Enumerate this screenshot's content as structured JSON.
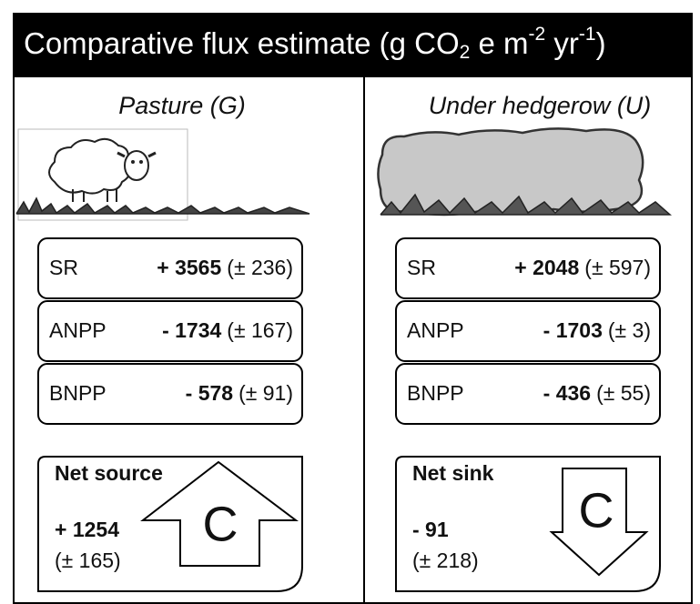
{
  "title": [
    "Comparative flux estimate (g CO",
    "2",
    " e m",
    "-2",
    " yr",
    "-1",
    ")"
  ],
  "panels": [
    {
      "heading": "Pasture (G)",
      "fluxes": [
        {
          "label": "SR",
          "value": "+ 3565",
          "error": "(± 236)"
        },
        {
          "label": "ANPP",
          "value": "- 1734",
          "error": "(± 167)"
        },
        {
          "label": "BNPP",
          "value": "- 578",
          "error": "(± 91)"
        }
      ],
      "net": {
        "label": "Net source",
        "value": "+ 1254",
        "error": "(± 165)",
        "symbol": "C"
      }
    },
    {
      "heading": "Under hedgerow (U)",
      "fluxes": [
        {
          "label": "SR",
          "value": "+ 2048",
          "error": "(± 597)"
        },
        {
          "label": "ANPP",
          "value": "- 1703",
          "error": "(± 3)"
        },
        {
          "label": "BNPP",
          "value": "- 436",
          "error": "(± 55)"
        }
      ],
      "net": {
        "label": "Net sink",
        "value": "- 91",
        "error": "(± 218)",
        "symbol": "C"
      }
    }
  ]
}
